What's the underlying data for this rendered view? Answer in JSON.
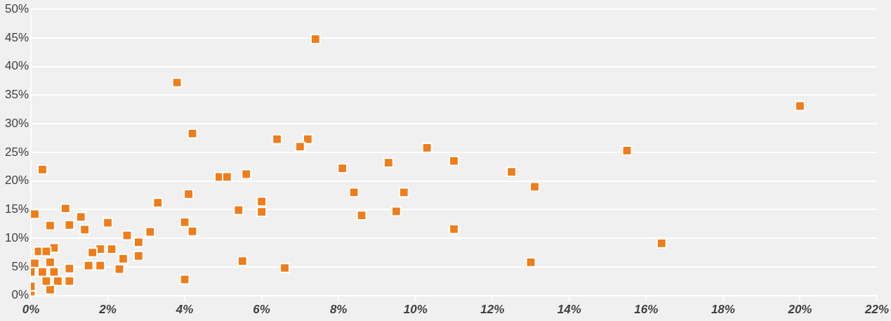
{
  "chart_data": {
    "type": "scatter",
    "marker": "square",
    "grid": "y",
    "series": [
      {
        "color": "#ef7d1a",
        "x": [
          7.4,
          3.8,
          4.2,
          6.4,
          7.2,
          7.0,
          10.3,
          15.5,
          20.0,
          0.3,
          8.1,
          9.3,
          11.0,
          12.5,
          13.1,
          4.9,
          5.1,
          5.6,
          4.1,
          8.4,
          9.7,
          6.0,
          6.0,
          5.4,
          8.6,
          9.5,
          11.0,
          3.3,
          4.0,
          4.2,
          0.1,
          0.5,
          0.9,
          1.0,
          1.3,
          1.4,
          2.0,
          2.5,
          3.1,
          2.8,
          2.8,
          2.1,
          1.8,
          1.6,
          2.4,
          2.3,
          1.5,
          1.8,
          1.0,
          1.0,
          0.7,
          0.5,
          4.0,
          5.5,
          6.6,
          13.0,
          16.4,
          0.2,
          0.6,
          0.4,
          0.1,
          0.5,
          0.0,
          0.6,
          0.0,
          0.4,
          0.0,
          0.3
        ],
        "values": [
          44.8,
          37.2,
          28.3,
          27.3,
          27.3,
          26.0,
          25.8,
          25.3,
          33.1,
          22.0,
          22.2,
          23.2,
          23.5,
          21.6,
          19.0,
          20.7,
          20.7,
          21.2,
          17.7,
          18.0,
          18.0,
          16.4,
          14.6,
          14.9,
          14.0,
          14.7,
          11.6,
          16.2,
          12.8,
          11.2,
          14.2,
          12.2,
          15.2,
          12.3,
          13.7,
          11.5,
          12.7,
          10.5,
          11.1,
          9.3,
          6.9,
          8.1,
          8.1,
          7.5,
          6.4,
          4.6,
          5.2,
          5.2,
          4.7,
          2.5,
          2.5,
          1.0,
          2.8,
          6.0,
          4.8,
          5.8,
          9.1,
          7.7,
          8.3,
          7.7,
          5.6,
          5.8,
          4.1,
          4.1,
          1.6,
          2.5,
          0.0,
          4.1
        ]
      }
    ],
    "xlim": [
      0,
      22
    ],
    "ylim": [
      0,
      50
    ],
    "xticks": [
      {
        "value": 0,
        "label": "0%"
      },
      {
        "value": 2,
        "label": "2%"
      },
      {
        "value": 4,
        "label": "4%"
      },
      {
        "value": 6,
        "label": "6%"
      },
      {
        "value": 8,
        "label": "8%"
      },
      {
        "value": 10,
        "label": "10%"
      },
      {
        "value": 12,
        "label": "12%"
      },
      {
        "value": 14,
        "label": "14%"
      },
      {
        "value": 16,
        "label": "16%"
      },
      {
        "value": 18,
        "label": "18%"
      },
      {
        "value": 20,
        "label": "20%"
      },
      {
        "value": 22,
        "label": "22%"
      }
    ],
    "yticks": [
      {
        "value": 0,
        "label": "0%"
      },
      {
        "value": 5,
        "label": "5%"
      },
      {
        "value": 10,
        "label": "10%"
      },
      {
        "value": 15,
        "label": "15%"
      },
      {
        "value": 20,
        "label": "20%"
      },
      {
        "value": 25,
        "label": "25%"
      },
      {
        "value": 30,
        "label": "30%"
      },
      {
        "value": 35,
        "label": "35%"
      },
      {
        "value": 40,
        "label": "40%"
      },
      {
        "value": 45,
        "label": "45%"
      },
      {
        "value": 50,
        "label": "50%"
      }
    ]
  }
}
